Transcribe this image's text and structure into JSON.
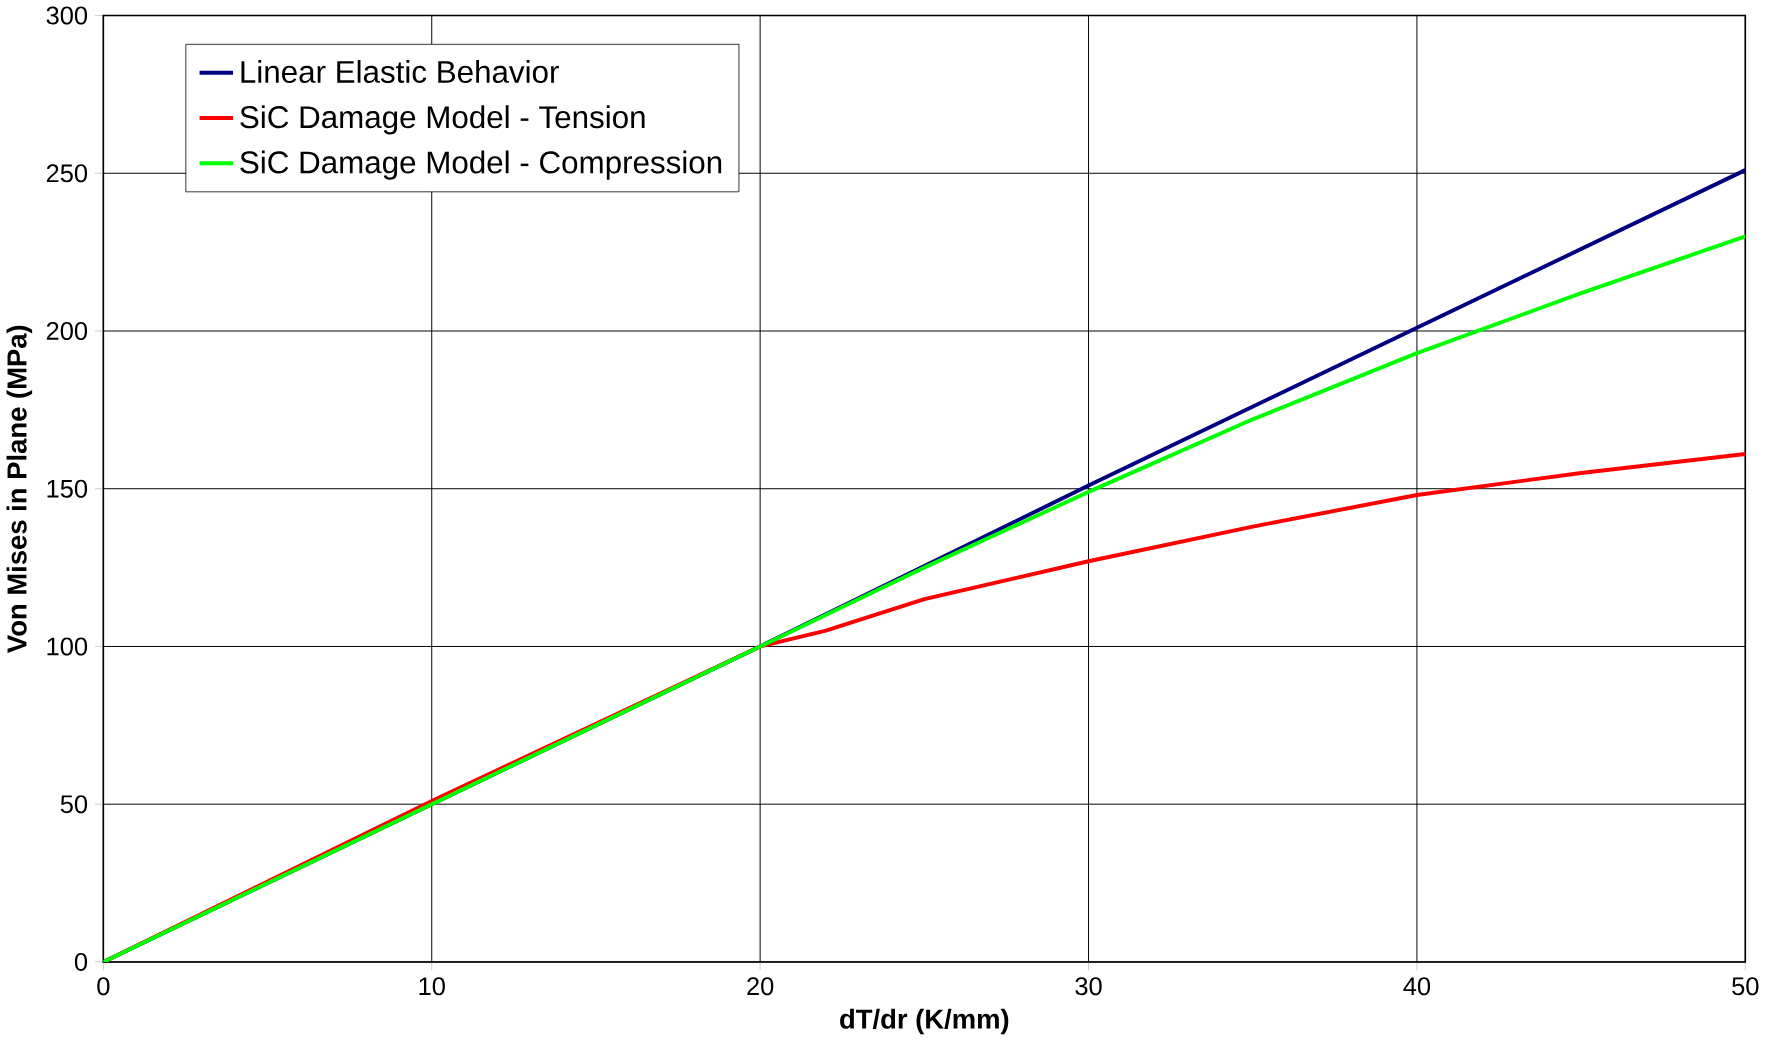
{
  "chart_data": {
    "type": "line",
    "xlabel": "dT/dr (K/mm)",
    "ylabel": "Von Mises in Plane (MPa)",
    "xlim": [
      0,
      50
    ],
    "ylim": [
      0,
      300
    ],
    "xticks": [
      0,
      10,
      20,
      30,
      40,
      50
    ],
    "yticks": [
      0,
      50,
      100,
      150,
      200,
      250,
      300
    ],
    "grid": true,
    "legend": "top left",
    "marker": "none",
    "line_style": "solid",
    "series": [
      {
        "name": "Linear Elastic Behavior",
        "color": "#000080",
        "x": [
          0,
          10,
          20,
          30,
          40,
          50
        ],
        "values": [
          0,
          50,
          100,
          151,
          201,
          251
        ]
      },
      {
        "name": "SiC Damage Model - Tension",
        "color": "#ff0000",
        "x": [
          0,
          10,
          20,
          22,
          25,
          30,
          35,
          40,
          45,
          50
        ],
        "values": [
          0,
          51,
          100,
          105,
          115,
          127,
          138,
          148,
          155,
          161
        ]
      },
      {
        "name": "SiC Damage Model - Compression",
        "color": "#00ff00",
        "x": [
          0,
          10,
          20,
          25,
          30,
          35,
          40,
          45,
          50
        ],
        "values": [
          0,
          50,
          100,
          125,
          149,
          172,
          193,
          212,
          230
        ]
      }
    ]
  }
}
